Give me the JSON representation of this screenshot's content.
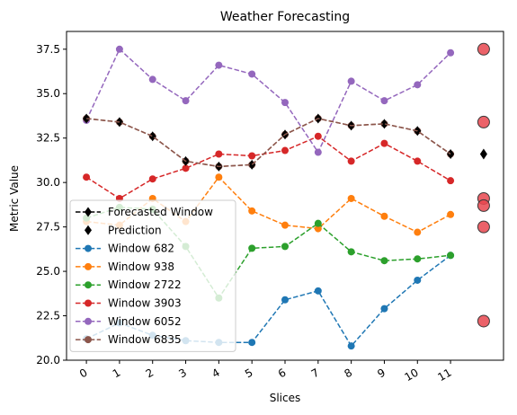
{
  "chart_data": {
    "type": "line",
    "title": "Weather Forecasting",
    "xlabel": "Slices",
    "ylabel": "Metric Value",
    "x": [
      0,
      1,
      2,
      3,
      4,
      5,
      6,
      7,
      8,
      9,
      10,
      11
    ],
    "x_tick_labels": [
      "0",
      "1",
      "2",
      "3",
      "4",
      "5",
      "6",
      "7",
      "8",
      "9",
      "10",
      "11"
    ],
    "xlim": [
      -0.6,
      12.6
    ],
    "ylim": [
      20.0,
      38.5
    ],
    "y_ticks": [
      20.0,
      22.5,
      25.0,
      27.5,
      30.0,
      32.5,
      35.0,
      37.5
    ],
    "y_tick_labels": [
      "20.0",
      "22.5",
      "25.0",
      "27.5",
      "30.0",
      "32.5",
      "35.0",
      "37.5"
    ],
    "grid": false,
    "legend_position": "lower-left",
    "series": [
      {
        "name": "Window 682",
        "color": "#1f77b4",
        "values": [
          21.2,
          22.1,
          21.4,
          21.1,
          21.0,
          21.0,
          23.4,
          23.9,
          20.8,
          22.9,
          24.5,
          25.9
        ]
      },
      {
        "name": "Window 938",
        "color": "#ff7f0e",
        "values": [
          27.8,
          27.6,
          29.1,
          27.8,
          30.3,
          28.4,
          27.6,
          27.4,
          29.1,
          28.1,
          27.2,
          28.2
        ]
      },
      {
        "name": "Window 2722",
        "color": "#2ca02c",
        "values": [
          28.0,
          28.6,
          28.5,
          26.4,
          23.5,
          26.3,
          26.4,
          27.7,
          26.1,
          25.6,
          25.7,
          25.9
        ]
      },
      {
        "name": "Window 3903",
        "color": "#d62728",
        "values": [
          30.3,
          29.1,
          30.2,
          30.8,
          31.6,
          31.5,
          31.8,
          32.6,
          31.2,
          32.2,
          31.2,
          30.1
        ]
      },
      {
        "name": "Window 6052",
        "color": "#9467bd",
        "values": [
          33.5,
          37.5,
          35.8,
          34.6,
          36.6,
          36.1,
          34.5,
          31.7,
          35.7,
          34.6,
          35.5,
          37.3
        ]
      },
      {
        "name": "Window 6835",
        "color": "#8c564b",
        "values": [
          33.6,
          33.4,
          32.6,
          31.2,
          30.9,
          31.0,
          32.7,
          33.6,
          33.2,
          33.3,
          32.9,
          31.6
        ]
      }
    ],
    "forecasted_window": {
      "name": "Forecasted Window",
      "color": "#000000",
      "values": [
        33.6,
        33.4,
        32.6,
        31.2,
        30.9,
        31.0,
        32.7,
        33.6,
        33.2,
        33.3,
        32.9,
        31.6
      ]
    },
    "prediction": {
      "name": "Prediction",
      "x": 12,
      "value": 31.6,
      "color": "#000000"
    },
    "actual_points": {
      "x": 12,
      "color": "#e8474f",
      "values": [
        37.5,
        33.4,
        29.1,
        28.7,
        27.5,
        22.2
      ]
    },
    "legend": {
      "entries": [
        {
          "label": "Forecasted Window",
          "color": "#000000",
          "style": "dashed-diamond"
        },
        {
          "label": "Prediction",
          "color": "#000000",
          "style": "diamond"
        },
        {
          "label": "Window 682",
          "color": "#1f77b4",
          "style": "dashed-circle"
        },
        {
          "label": "Window 938",
          "color": "#ff7f0e",
          "style": "dashed-circle"
        },
        {
          "label": "Window 2722",
          "color": "#2ca02c",
          "style": "dashed-circle"
        },
        {
          "label": "Window 3903",
          "color": "#d62728",
          "style": "dashed-circle"
        },
        {
          "label": "Window 6052",
          "color": "#9467bd",
          "style": "dashed-circle"
        },
        {
          "label": "Window 6835",
          "color": "#8c564b",
          "style": "dashed-circle"
        }
      ]
    }
  }
}
